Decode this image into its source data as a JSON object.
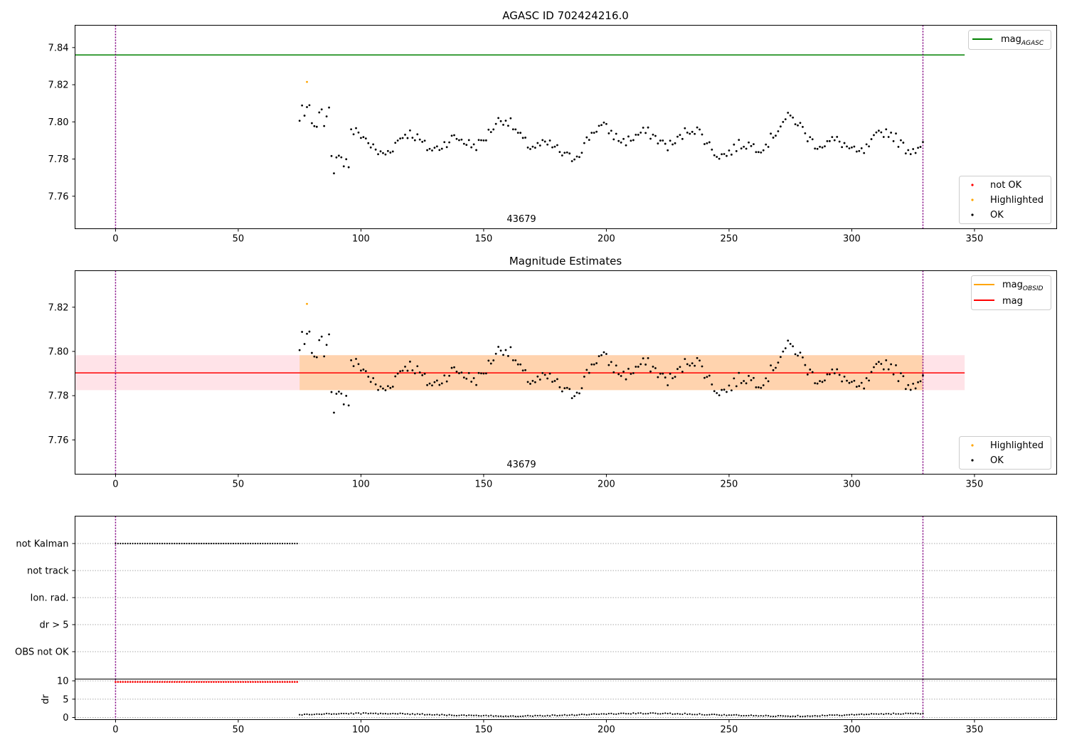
{
  "chart_data": [
    {
      "type": "scatter",
      "title": "AGASC ID 702424216.0",
      "xlim": [
        -16.5,
        383.5
      ],
      "ylim": [
        7.7425,
        7.852
      ],
      "xticks": [
        "0",
        "50",
        "100",
        "150",
        "200",
        "250",
        "300",
        "350"
      ],
      "yticks": [
        "7.76",
        "7.78",
        "7.80",
        "7.82",
        "7.84"
      ],
      "mag_agasc": 7.836,
      "obsid_label": "43679",
      "vlines": [
        0,
        329
      ],
      "legend_lines": [
        {
          "name": "mag",
          "sub": "AGASC",
          "color": "#008000"
        }
      ],
      "legend_points": [
        {
          "name": "not OK",
          "color": "#ff0000"
        },
        {
          "name": "Highlighted",
          "color": "#ffa500"
        },
        {
          "name": "OK",
          "color": "#000000"
        }
      ],
      "highlighted_points": [
        {
          "x": 78,
          "y": 7.8215
        }
      ]
    },
    {
      "type": "scatter",
      "title": "Magnitude Estimates",
      "xlim": [
        -16.5,
        383.5
      ],
      "ylim": [
        7.7445,
        7.8365
      ],
      "xticks": [
        "0",
        "50",
        "100",
        "150",
        "200",
        "250",
        "300",
        "350"
      ],
      "yticks": [
        "7.76",
        "7.78",
        "7.80",
        "7.82"
      ],
      "mag": 7.7903,
      "mag_band": [
        7.7825,
        7.7983
      ],
      "obsid_label": "43679",
      "vlines": [
        0,
        329
      ],
      "legend_lines": [
        {
          "name": "mag",
          "sub": "OBSID",
          "color": "#ffa500"
        },
        {
          "name": "mag",
          "sub": "",
          "color": "#ff0000"
        }
      ],
      "legend_points": [
        {
          "name": "Highlighted",
          "color": "#ffa500"
        },
        {
          "name": "OK",
          "color": "#000000"
        }
      ],
      "highlighted_points": [
        {
          "x": 78,
          "y": 7.8215
        }
      ]
    },
    {
      "type": "scatter",
      "title": "",
      "xlim": [
        -16.5,
        383.5
      ],
      "flag_labels": [
        "not Kalman",
        "not track",
        "Ion. rad.",
        "dr > 5",
        "OBS not OK"
      ],
      "not_kalman_x_range": [
        0,
        74
      ],
      "vlines": [
        0,
        329
      ]
    },
    {
      "type": "scatter",
      "title": "",
      "xlim": [
        -16.5,
        383.5
      ],
      "ylim": [
        -0.5,
        10.5
      ],
      "ylabel": "dr",
      "xticks": [
        "0",
        "50",
        "100",
        "150",
        "200",
        "250",
        "300",
        "350"
      ],
      "yticks": [
        "0",
        "5",
        "10"
      ],
      "dr_red_value": 9.7,
      "dr_red_x_range": [
        0,
        74
      ],
      "dr_ok_x_range": [
        75,
        329
      ],
      "vlines": [
        0,
        329
      ]
    }
  ],
  "colors": {
    "ok": "#000000",
    "not_ok": "#ff0000",
    "highlighted": "#ffa500",
    "vline": "#800080",
    "band_fill": "#ffc0cb",
    "band_overlay": "#ffa500"
  }
}
